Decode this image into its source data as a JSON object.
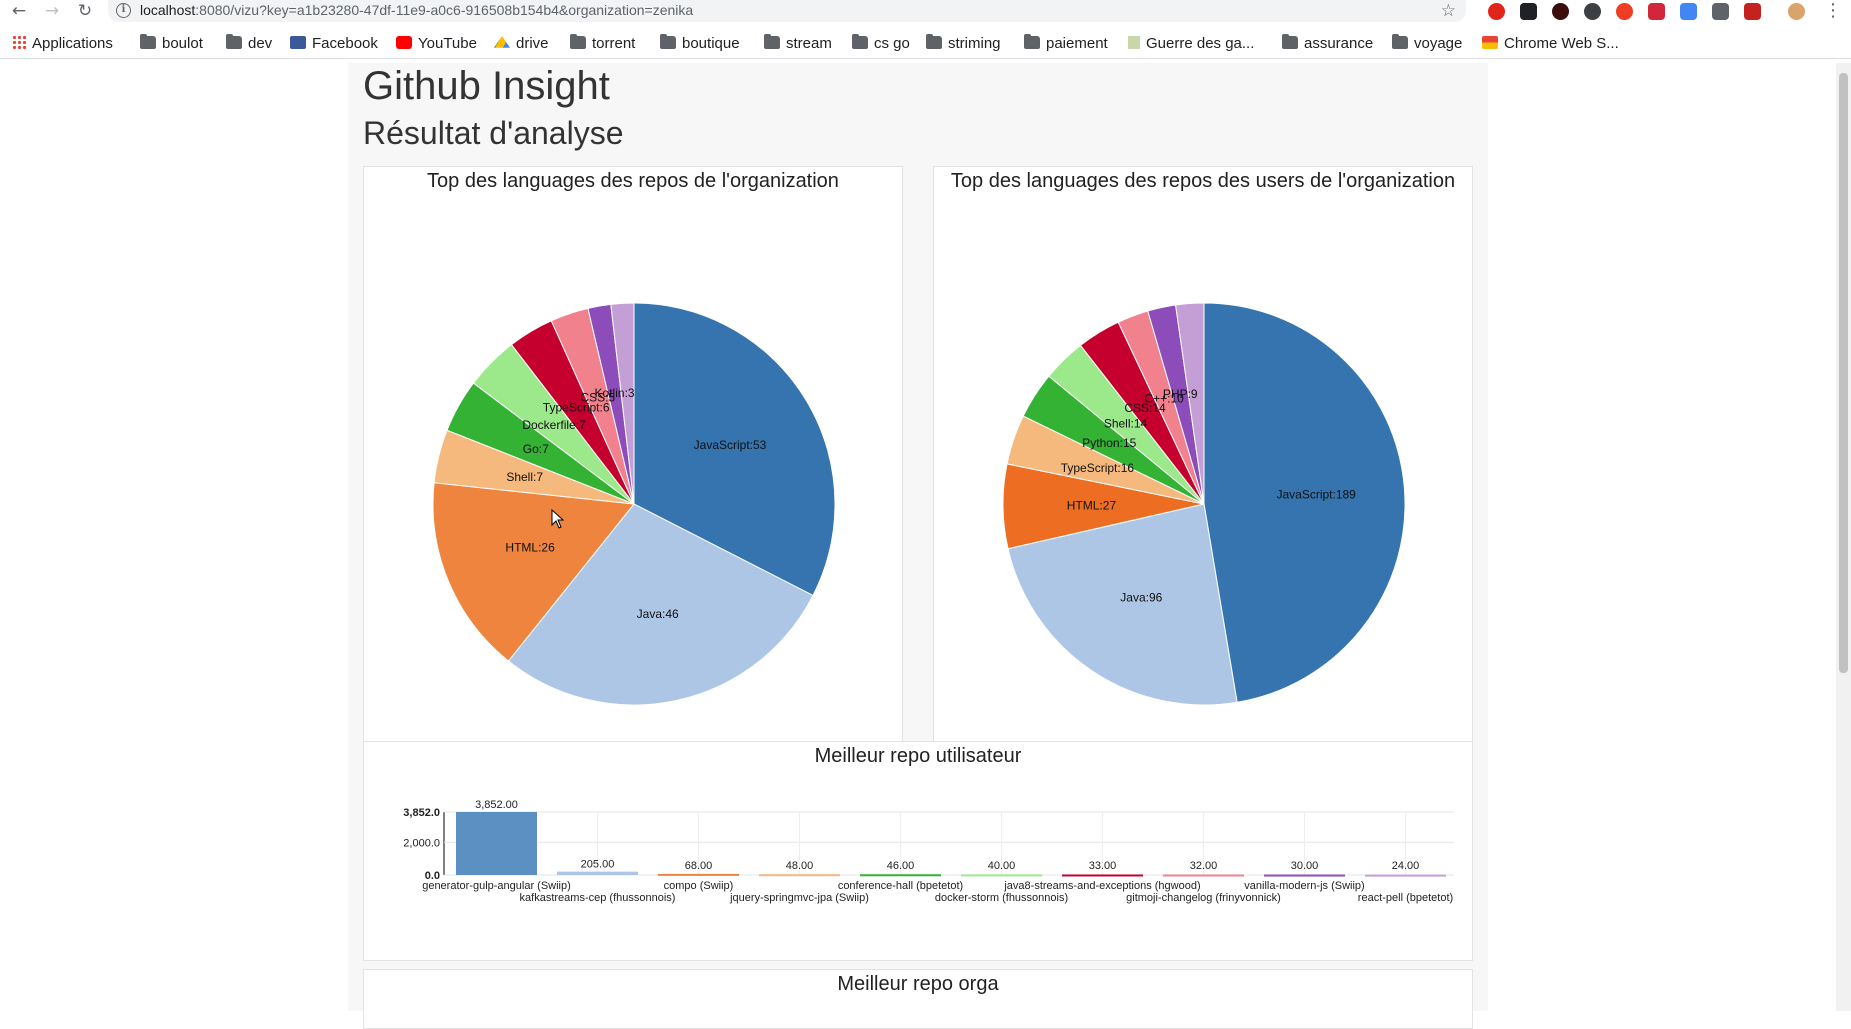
{
  "browser": {
    "url_host": "localhost",
    "url_rest": ":8080/vizu?key=a1b23280-47df-11e9-a0c6-916508b154b4&organization=zenika",
    "bookmarks": [
      "Applications",
      "boulot",
      "dev",
      "Facebook",
      "YouTube",
      "drive",
      "torrent",
      "boutique",
      "stream",
      "cs go",
      "striming",
      "paiement",
      "Guerre des ga...",
      "assurance",
      "voyage",
      "Chrome Web S..."
    ]
  },
  "page": {
    "title": "Github Insight",
    "subtitle": "Résultat d'analyse",
    "section_best_user_repo": "Meilleur repo utilisateur",
    "section_best_org_repo": "Meilleur repo orga"
  },
  "chart_data": [
    {
      "type": "pie",
      "title": "Top des languages des repos de l'organization",
      "labels": [
        "JavaScript",
        "Java",
        "HTML",
        "Shell",
        "Go",
        "Dockerfile",
        "TypeScript",
        "CSS",
        "Kotlin"
      ],
      "values": [
        53,
        46,
        26,
        7,
        7,
        7,
        6,
        5,
        3
      ],
      "colors": [
        "#3574ae",
        "#aec6e6",
        "#ee843d",
        "#f6b97d",
        "#33b233",
        "#9be98b",
        "#c5002f",
        "#f2818e",
        "#8c4cb9"
      ],
      "extra_slice": {
        "color": "#c49fd5",
        "value": 3
      }
    },
    {
      "type": "pie",
      "title": "Top des languages des repos des users de l'organization",
      "labels": [
        "JavaScript",
        "Java",
        "HTML",
        "TypeScript",
        "Python",
        "Shell",
        "CSS",
        "C++",
        "PHP"
      ],
      "values": [
        189,
        96,
        27,
        16,
        15,
        14,
        14,
        10,
        9
      ],
      "colors": [
        "#3574ae",
        "#aec6e6",
        "#ed6e22",
        "#f6b97d",
        "#33b233",
        "#9be98b",
        "#c5002f",
        "#f2818e",
        "#8c4cb9"
      ],
      "extra_slice": {
        "color": "#c49fd5",
        "value": 9
      }
    },
    {
      "type": "bar",
      "title": "Meilleur repo utilisateur",
      "categories": [
        "generator-gulp-angular (Swiip)",
        "kafkastreams-cep (fhussonnois)",
        "compo (Swiip)",
        "jquery-springmvc-jpa (Swiip)",
        "conference-hall (bpetetot)",
        "docker-storm (fhussonnois)",
        "java8-streams-and-exceptions (hgwood)",
        "gitmoji-changelog (frinyvonnick)",
        "vanilla-modern-js (Swiip)",
        "react-pell (bpetetot)"
      ],
      "values": [
        3852,
        205,
        68,
        48,
        46,
        40,
        33,
        32,
        30,
        24
      ],
      "value_labels": [
        "3,852.00",
        "205.00",
        "68.00",
        "48.00",
        "46.00",
        "40.00",
        "33.00",
        "32.00",
        "30.00",
        "24.00"
      ],
      "colors": [
        "#5d90c2",
        "#aec6e6",
        "#ee843d",
        "#f6b97d",
        "#33b233",
        "#9be98b",
        "#c5002f",
        "#f2818e",
        "#8c4cb9",
        "#c49fd5"
      ],
      "y_ticks": [
        "0.0",
        "2,000.0",
        "3,852.0"
      ],
      "y_tick_values": [
        0,
        2000,
        3852
      ],
      "ylim": [
        0,
        3852
      ],
      "grid": true
    }
  ]
}
